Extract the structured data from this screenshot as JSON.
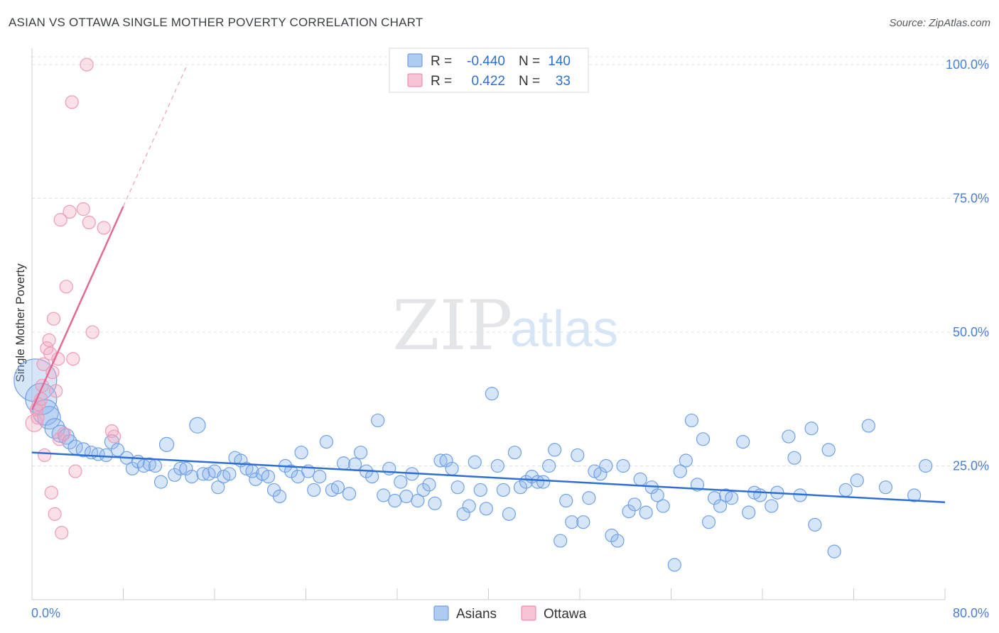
{
  "header": {
    "title": "ASIAN VS OTTAWA SINGLE MOTHER POVERTY CORRELATION CHART",
    "source": "Source: ZipAtlas.com"
  },
  "watermark": {
    "zip": "ZIP",
    "atlas": "atlas"
  },
  "legend": {
    "series": [
      {
        "r_label": "R =",
        "r_value": "-0.440",
        "n_label": "N =",
        "n_value": "140",
        "color": "#aecbf2",
        "stroke": "#5a8fe0"
      },
      {
        "r_label": "R =",
        "r_value": "0.422",
        "n_label": "N =",
        "n_value": "33",
        "color": "#f8c3d4",
        "stroke": "#e97fa3"
      }
    ]
  },
  "bottom_legend": [
    "Asians",
    "Ottawa"
  ],
  "chart_data": {
    "type": "scatter",
    "title": "ASIAN VS OTTAWA SINGLE MOTHER POVERTY CORRELATION CHART",
    "xlabel": "",
    "ylabel": "Single Mother Poverty",
    "xlim": [
      0,
      80
    ],
    "ylim": [
      0,
      102
    ],
    "x_tick_labels": [
      "0.0%",
      "80.0%"
    ],
    "y_ticks": [
      25,
      50,
      75,
      100
    ],
    "y_tick_labels": [
      "25.0%",
      "50.0%",
      "75.0%",
      "100.0%"
    ],
    "grid": true,
    "series": [
      {
        "name": "Asians",
        "color": "#6fa1e8",
        "trend": {
          "x1": 0,
          "y1": 27.5,
          "x2": 80,
          "y2": 18.2
        },
        "points": [
          [
            0.3,
            41,
            30
          ],
          [
            0.8,
            37.5,
            22
          ],
          [
            1.2,
            35,
            18
          ],
          [
            1.5,
            34,
            16
          ],
          [
            2,
            32,
            14
          ],
          [
            2.5,
            31,
            12
          ],
          [
            3,
            30.5,
            11
          ],
          [
            3.3,
            29.5,
            10
          ],
          [
            3.8,
            28.5,
            10
          ],
          [
            4.5,
            28,
            10
          ],
          [
            5.2,
            27.5,
            9
          ],
          [
            5.8,
            27.2,
            9
          ],
          [
            6.5,
            27,
            9
          ],
          [
            7,
            29.5,
            10
          ],
          [
            7.5,
            28,
            9
          ],
          [
            8.3,
            26.5,
            9
          ],
          [
            8.8,
            24.5,
            9
          ],
          [
            9.3,
            25.8,
            9
          ],
          [
            9.8,
            25,
            9
          ],
          [
            10.3,
            25.3,
            9
          ],
          [
            10.8,
            25,
            9
          ],
          [
            11.3,
            22,
            9
          ],
          [
            11.8,
            29,
            10
          ],
          [
            12.5,
            23.3,
            9
          ],
          [
            13,
            24.5,
            9
          ],
          [
            13.5,
            24.5,
            9
          ],
          [
            14,
            23,
            9
          ],
          [
            14.5,
            32.6,
            11
          ],
          [
            15,
            23.5,
            9
          ],
          [
            15.5,
            23.5,
            9
          ],
          [
            16,
            24,
            9
          ],
          [
            16.3,
            21,
            9
          ],
          [
            16.8,
            23,
            9
          ],
          [
            17.3,
            23.5,
            9
          ],
          [
            17.8,
            26.5,
            9
          ],
          [
            18.3,
            26,
            9
          ],
          [
            18.8,
            24.5,
            9
          ],
          [
            19.3,
            24,
            9
          ],
          [
            19.6,
            22.5,
            9
          ],
          [
            20.2,
            23.5,
            9
          ],
          [
            20.7,
            23,
            9
          ],
          [
            21.2,
            20.5,
            9
          ],
          [
            21.7,
            19.3,
            9
          ],
          [
            22.2,
            25,
            9
          ],
          [
            22.7,
            24,
            9
          ],
          [
            23.3,
            23,
            9
          ],
          [
            23.6,
            27.5,
            9
          ],
          [
            24.2,
            24,
            9
          ],
          [
            24.7,
            20.5,
            9
          ],
          [
            25.2,
            23,
            9
          ],
          [
            25.8,
            29.5,
            9
          ],
          [
            26.3,
            20.5,
            9
          ],
          [
            26.8,
            21,
            9
          ],
          [
            27.3,
            25.5,
            9
          ],
          [
            27.8,
            19.8,
            9
          ],
          [
            28.3,
            25.3,
            9
          ],
          [
            28.8,
            27.5,
            9
          ],
          [
            29.3,
            24,
            9
          ],
          [
            29.8,
            23,
            9
          ],
          [
            30.3,
            33.5,
            9
          ],
          [
            30.8,
            19.5,
            9
          ],
          [
            31.3,
            24.5,
            9
          ],
          [
            31.8,
            18.5,
            9
          ],
          [
            32.3,
            22,
            9
          ],
          [
            32.8,
            19.3,
            9
          ],
          [
            33.3,
            23.5,
            9
          ],
          [
            33.8,
            18.5,
            9
          ],
          [
            34.3,
            20.5,
            9
          ],
          [
            34.8,
            21.5,
            9
          ],
          [
            35.3,
            18,
            9
          ],
          [
            35.8,
            26,
            9
          ],
          [
            36.3,
            26,
            9
          ],
          [
            36.8,
            24.5,
            9
          ],
          [
            37.3,
            21,
            9
          ],
          [
            37.8,
            16,
            9
          ],
          [
            38.3,
            17.5,
            9
          ],
          [
            38.8,
            25.7,
            9
          ],
          [
            39.3,
            20.5,
            9
          ],
          [
            39.8,
            17,
            9
          ],
          [
            40.3,
            38.5,
            9
          ],
          [
            40.8,
            25,
            9
          ],
          [
            41.3,
            20.5,
            9
          ],
          [
            41.8,
            16,
            9
          ],
          [
            42.3,
            27.5,
            9
          ],
          [
            42.8,
            21,
            9
          ],
          [
            43.3,
            22,
            9
          ],
          [
            43.8,
            23,
            9
          ],
          [
            44.3,
            22,
            9
          ],
          [
            44.8,
            22,
            9
          ],
          [
            45.3,
            25,
            9
          ],
          [
            45.8,
            28,
            9
          ],
          [
            46.3,
            11,
            9
          ],
          [
            46.8,
            18.5,
            9
          ],
          [
            47.3,
            14.5,
            9
          ],
          [
            47.8,
            27,
            9
          ],
          [
            48.3,
            14.5,
            9
          ],
          [
            48.8,
            19,
            9
          ],
          [
            49.3,
            24,
            9
          ],
          [
            49.8,
            23.5,
            9
          ],
          [
            50.3,
            25,
            9
          ],
          [
            50.8,
            12,
            9
          ],
          [
            51.3,
            11,
            9
          ],
          [
            51.8,
            25,
            9
          ],
          [
            52.3,
            16.5,
            9
          ],
          [
            52.8,
            17.8,
            9
          ],
          [
            53.3,
            22.5,
            9
          ],
          [
            53.8,
            16.3,
            9
          ],
          [
            54.3,
            21,
            9
          ],
          [
            54.8,
            19.5,
            9
          ],
          [
            55.3,
            17.5,
            9
          ],
          [
            56.3,
            6.5,
            9
          ],
          [
            56.8,
            24,
            9
          ],
          [
            57.3,
            26,
            9
          ],
          [
            57.8,
            33.5,
            9
          ],
          [
            58.3,
            21.5,
            9
          ],
          [
            58.8,
            30,
            9
          ],
          [
            59.3,
            14.5,
            9
          ],
          [
            59.8,
            19,
            9
          ],
          [
            60.3,
            17.5,
            9
          ],
          [
            60.8,
            19.5,
            9
          ],
          [
            61.3,
            19,
            9
          ],
          [
            62.3,
            29.5,
            9
          ],
          [
            62.8,
            16.3,
            9
          ],
          [
            63.3,
            20,
            9
          ],
          [
            63.8,
            19.5,
            9
          ],
          [
            64.8,
            17.5,
            9
          ],
          [
            65.3,
            20,
            9
          ],
          [
            66.3,
            30.5,
            9
          ],
          [
            66.8,
            26.5,
            9
          ],
          [
            67.3,
            19.5,
            9
          ],
          [
            68.3,
            32,
            9
          ],
          [
            68.6,
            14,
            9
          ],
          [
            69.8,
            28,
            9
          ],
          [
            70.3,
            9,
            9
          ],
          [
            71.3,
            20.5,
            9
          ],
          [
            72.3,
            22.3,
            9
          ],
          [
            73.3,
            32.5,
            9
          ],
          [
            74.8,
            21,
            9
          ],
          [
            77.3,
            19.5,
            9
          ],
          [
            78.3,
            25,
            9
          ]
        ]
      },
      {
        "name": "Ottawa",
        "color": "#f2a3bd",
        "trend": {
          "x1": 0,
          "y1": 35.5,
          "x2": 8,
          "y2": 73.5,
          "dash_to_x": 13.5,
          "dash_to_y": 99.5
        },
        "points": [
          [
            0.2,
            33,
            12
          ],
          [
            0.4,
            35.5,
            9
          ],
          [
            0.6,
            36.5,
            9
          ],
          [
            0.8,
            37.5,
            9
          ],
          [
            1,
            44,
            9
          ],
          [
            1.1,
            27,
            9
          ],
          [
            1.3,
            47,
            9
          ],
          [
            1.5,
            48.5,
            9
          ],
          [
            1.6,
            46,
            9
          ],
          [
            1.7,
            20,
            9
          ],
          [
            1.8,
            42.5,
            9
          ],
          [
            1.9,
            52.5,
            9
          ],
          [
            2,
            16,
            9
          ],
          [
            2.1,
            39,
            9
          ],
          [
            2.3,
            45,
            9
          ],
          [
            2.4,
            30,
            9
          ],
          [
            2.5,
            71,
            9
          ],
          [
            2.6,
            12.5,
            9
          ],
          [
            2.8,
            31,
            9
          ],
          [
            3,
            58.5,
            9
          ],
          [
            3.3,
            72.5,
            9
          ],
          [
            3.6,
            45,
            9
          ],
          [
            3.8,
            24,
            9
          ],
          [
            3.5,
            93,
            9
          ],
          [
            4.5,
            73,
            9
          ],
          [
            4.8,
            100,
            9
          ],
          [
            5,
            70.5,
            9
          ],
          [
            5.3,
            50,
            9
          ],
          [
            6.3,
            69.5,
            9
          ],
          [
            7,
            31.5,
            9
          ],
          [
            7.2,
            30.5,
            9
          ],
          [
            0.5,
            34,
            9
          ],
          [
            0.9,
            40,
            9
          ]
        ]
      }
    ]
  }
}
